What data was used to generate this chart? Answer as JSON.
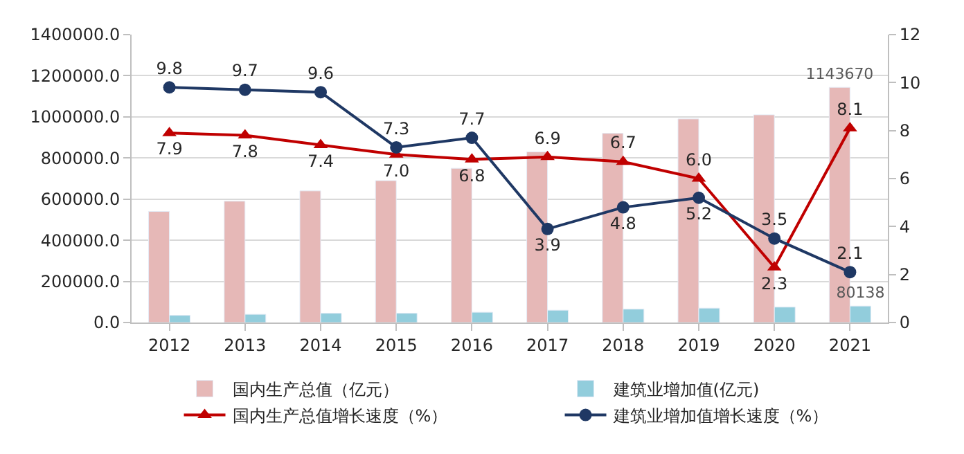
{
  "chart_data": {
    "type": "bar",
    "categories": [
      "2012",
      "2013",
      "2014",
      "2015",
      "2016",
      "2017",
      "2018",
      "2019",
      "2020",
      "2021"
    ],
    "series": [
      {
        "name": "国内生产总值（亿元）",
        "color": "#e6b8b7",
        "values": [
          540000,
          590000,
          640000,
          690000,
          750000,
          830000,
          920000,
          990000,
          1010000,
          1143670
        ],
        "value_labels": [
          null,
          null,
          null,
          null,
          null,
          null,
          null,
          null,
          null,
          "1143670"
        ]
      },
      {
        "name": "建筑业增加值(亿元)",
        "color": "#92cddc",
        "values": [
          35000,
          40000,
          45000,
          45000,
          50000,
          60000,
          65000,
          70000,
          75000,
          80138
        ],
        "value_labels": [
          null,
          null,
          null,
          null,
          null,
          null,
          null,
          null,
          null,
          "80138"
        ]
      },
      {
        "name": "国内生产总值增长速度（%）",
        "type": "line",
        "axis": "y2",
        "marker": "triangle",
        "color": "#c00000",
        "values": [
          7.9,
          7.8,
          7.4,
          7.0,
          6.8,
          6.9,
          6.7,
          6.0,
          2.3,
          8.1
        ],
        "value_labels": [
          "7.9",
          "7.8",
          "7.4",
          "7.0",
          "6.8",
          "6.9",
          "6.7",
          "6.0",
          "2.3",
          "8.1"
        ]
      },
      {
        "name": "建筑业增加值增长速度（%）",
        "type": "line",
        "axis": "y2",
        "marker": "circle",
        "color": "#1f3864",
        "values": [
          9.8,
          9.7,
          9.6,
          7.3,
          7.7,
          3.9,
          4.8,
          5.2,
          3.5,
          2.1
        ],
        "value_labels": [
          "9.8",
          "9.7",
          "9.6",
          "7.3",
          "7.7",
          "3.9",
          "4.8",
          "5.2",
          "3.5",
          "2.1"
        ]
      }
    ],
    "ylim": [
      0,
      1400000
    ],
    "yticks": [
      {
        "value": 0,
        "label": "0.0"
      },
      {
        "value": 200000,
        "label": "200000.0"
      },
      {
        "value": 400000,
        "label": "400000.0"
      },
      {
        "value": 600000,
        "label": "600000.0"
      },
      {
        "value": 800000,
        "label": "800000.0"
      },
      {
        "value": 1000000,
        "label": "1000000.0"
      },
      {
        "value": 1200000,
        "label": "1200000.0"
      },
      {
        "value": 1400000,
        "label": "1400000.0"
      }
    ],
    "y2lim": [
      0,
      12
    ],
    "y2ticks": [
      0,
      2,
      4,
      6,
      8,
      10,
      12
    ],
    "grid": "y",
    "legend": "bottom"
  }
}
